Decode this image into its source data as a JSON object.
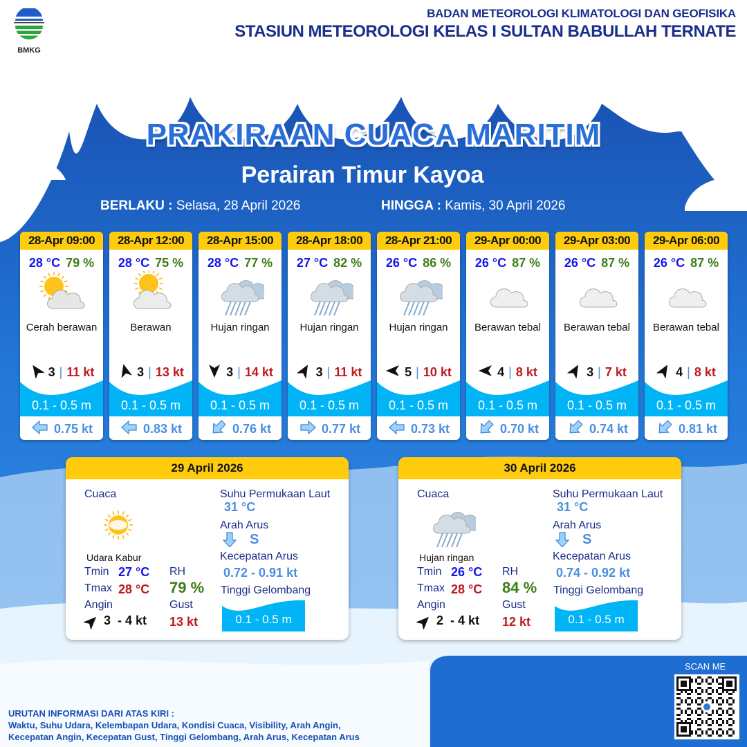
{
  "header": {
    "org_line1": "BADAN METEOROLOGI KLIMATOLOGI DAN GEOFISIKA",
    "org_line2": "STASIUN METEOROLOGI KELAS I SULTAN BABULLAH TERNATE",
    "logo_text": "BMKG"
  },
  "title": "PRAKIRAAN CUACA MARITIM",
  "area": "Perairan Timur Kayoa",
  "validity": {
    "from_label": "BERLAKU :",
    "from_value": "Selasa, 28 April 2026",
    "to_label": "HINGGA :",
    "to_value": "Kamis, 30 April 2026"
  },
  "colors": {
    "header_yellow": "#fecb0d",
    "temp_blue": "#1414f0",
    "rh_green": "#3d7d17",
    "gust_red": "#c0181e",
    "wave_cyan": "#00b4f5",
    "current_blue": "#4a8fe0",
    "bg_blue": "#1f6fd0"
  },
  "forecasts": [
    {
      "time": "28-Apr 09:00",
      "temp": "28 °C",
      "rh": "79 %",
      "icon": "partly-cloudy",
      "condition": "Cerah berawan",
      "wind_dir_deg": -35,
      "wind_speed": "3",
      "gust": "11 kt",
      "wave": "0.1 - 0.5 m",
      "current_dir_deg": 270,
      "current_speed": "0.75 kt"
    },
    {
      "time": "28-Apr 12:00",
      "temp": "28 °C",
      "rh": "75 %",
      "icon": "cloudy",
      "condition": "Berawan",
      "wind_dir_deg": -15,
      "wind_speed": "3",
      "gust": "13 kt",
      "wave": "0.1 - 0.5 m",
      "current_dir_deg": 270,
      "current_speed": "0.83 kt"
    },
    {
      "time": "28-Apr 15:00",
      "temp": "28 °C",
      "rh": "77 %",
      "icon": "light-rain",
      "condition": "Hujan ringan",
      "wind_dir_deg": 180,
      "wind_speed": "3",
      "gust": "14 kt",
      "wave": "0.1 - 0.5 m",
      "current_dir_deg": 225,
      "current_speed": "0.76 kt"
    },
    {
      "time": "28-Apr 18:00",
      "temp": "27 °C",
      "rh": "82 %",
      "icon": "light-rain",
      "condition": "Hujan ringan",
      "wind_dir_deg": 30,
      "wind_speed": "3",
      "gust": "11 kt",
      "wave": "0.1 - 0.5 m",
      "current_dir_deg": 90,
      "current_speed": "0.77 kt"
    },
    {
      "time": "28-Apr 21:00",
      "temp": "26 °C",
      "rh": "86 %",
      "icon": "light-rain",
      "condition": "Hujan ringan",
      "wind_dir_deg": -90,
      "wind_speed": "5",
      "gust": "10 kt",
      "wave": "0.1 - 0.5 m",
      "current_dir_deg": 270,
      "current_speed": "0.73 kt"
    },
    {
      "time": "29-Apr 00:00",
      "temp": "26 °C",
      "rh": "87 %",
      "icon": "overcast",
      "condition": "Berawan tebal",
      "wind_dir_deg": -90,
      "wind_speed": "4",
      "gust": "8 kt",
      "wave": "0.1 - 0.5 m",
      "current_dir_deg": 225,
      "current_speed": "0.70 kt"
    },
    {
      "time": "29-Apr 03:00",
      "temp": "26 °C",
      "rh": "87 %",
      "icon": "overcast",
      "condition": "Berawan tebal",
      "wind_dir_deg": 30,
      "wind_speed": "3",
      "gust": "7 kt",
      "wave": "0.1 - 0.5 m",
      "current_dir_deg": 225,
      "current_speed": "0.74 kt"
    },
    {
      "time": "29-Apr 06:00",
      "temp": "26 °C",
      "rh": "87 %",
      "icon": "overcast",
      "condition": "Berawan tebal",
      "wind_dir_deg": 30,
      "wind_speed": "4",
      "gust": "8 kt",
      "wave": "0.1 - 0.5 m",
      "current_dir_deg": 225,
      "current_speed": "0.81 kt"
    }
  ],
  "daily": [
    {
      "date": "29 April 2026",
      "weather_label": "Cuaca",
      "icon": "haze",
      "condition": "Udara Kabur",
      "tmin_label": "Tmin",
      "tmin": "27 °C",
      "tmax_label": "Tmax",
      "tmax": "28 °C",
      "rh_label": "RH",
      "rh": "79 %",
      "wind_label": "Angin",
      "wind": "3  - 4 kt",
      "wind_dir_deg": 45,
      "gust_label": "Gust",
      "gust": "13 kt",
      "sst_label": "Suhu Permukaan Laut",
      "sst": "31 °C",
      "current_dir_label": "Arah Arus",
      "current_dir": "S",
      "current_speed_label": "Kecepatan Arus",
      "current_speed": "0.72 - 0.91 kt",
      "wave_label": "Tinggi Gelombang",
      "wave": "0.1 - 0.5 m"
    },
    {
      "date": "30 April 2026",
      "weather_label": "Cuaca",
      "icon": "light-rain",
      "condition": "Hujan ringan",
      "tmin_label": "Tmin",
      "tmin": "26 °C",
      "tmax_label": "Tmax",
      "tmax": "28 °C",
      "rh_label": "RH",
      "rh": "84 %",
      "wind_label": "Angin",
      "wind": "2  - 4 kt",
      "wind_dir_deg": 45,
      "gust_label": "Gust",
      "gust": "12 kt",
      "sst_label": "Suhu Permukaan Laut",
      "sst": "31 °C",
      "current_dir_label": "Arah Arus",
      "current_dir": "S",
      "current_speed_label": "Kecepatan Arus",
      "current_speed": "0.74 - 0.92 kt",
      "wave_label": "Tinggi Gelombang",
      "wave": "0.1 - 0.5 m"
    }
  ],
  "footer": {
    "heading": "URUTAN INFORMASI DARI ATAS KIRI :",
    "line1": "Waktu, Suhu Udara, Kelembapan Udara, Kondisi Cuaca, Visibility, Arah Angin,",
    "line2": "Kecepatan Angin, Kecepatan Gust, Tinggi Gelombang, Arah Arus, Kecepatan Arus",
    "scan_label": "SCAN ME"
  }
}
